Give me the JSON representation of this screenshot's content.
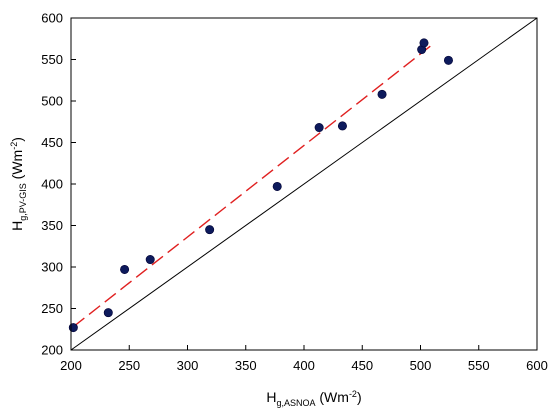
{
  "chart_data": {
    "type": "scatter",
    "title": "",
    "x_axis": {
      "label_main": "H",
      "label_sub": "g,ASNOA",
      "label_unit_prefix": " (Wm",
      "label_unit_sup": "-2",
      "label_unit_suffix": ")",
      "range": [
        200,
        600
      ],
      "ticks": [
        200,
        250,
        300,
        350,
        400,
        450,
        500,
        550,
        600
      ]
    },
    "y_axis": {
      "label_main": "H",
      "label_sub": "g,PV-GIS",
      "label_unit_prefix": " (Wm",
      "label_unit_sup": "-2",
      "label_unit_suffix": ")",
      "range": [
        200,
        600
      ],
      "ticks": [
        200,
        250,
        300,
        350,
        400,
        450,
        500,
        550,
        600
      ]
    },
    "grid": false,
    "legend": "none",
    "series": [
      {
        "kind": "points",
        "color": "#0d1a5c",
        "points": [
          {
            "x": 202,
            "y": 227
          },
          {
            "x": 232,
            "y": 245
          },
          {
            "x": 246,
            "y": 297
          },
          {
            "x": 268,
            "y": 309
          },
          {
            "x": 319,
            "y": 345
          },
          {
            "x": 377,
            "y": 397
          },
          {
            "x": 413,
            "y": 468
          },
          {
            "x": 433,
            "y": 470
          },
          {
            "x": 467,
            "y": 508
          },
          {
            "x": 501,
            "y": 562
          },
          {
            "x": 503,
            "y": 570
          },
          {
            "x": 524,
            "y": 549
          }
        ]
      },
      {
        "kind": "regression-line",
        "style": "dashed",
        "color": "#e02020",
        "points": [
          {
            "x": 202,
            "y": 228
          },
          {
            "x": 512,
            "y": 570
          }
        ]
      },
      {
        "kind": "identity-line",
        "style": "solid",
        "color": "#000000",
        "points": [
          {
            "x": 200,
            "y": 200
          },
          {
            "x": 600,
            "y": 600
          }
        ]
      }
    ]
  }
}
